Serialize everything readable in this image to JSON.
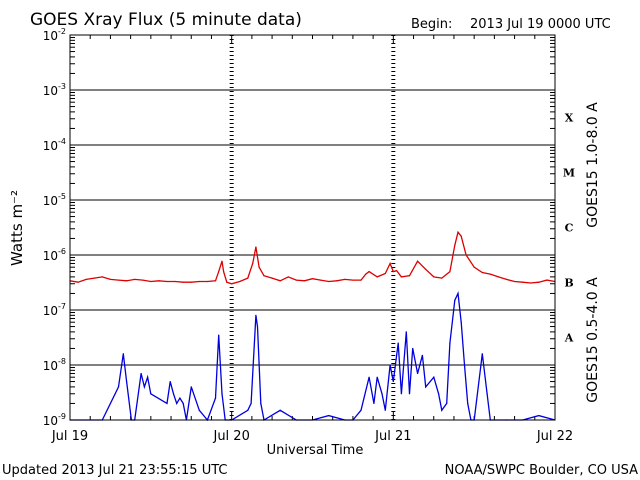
{
  "chart_data": {
    "type": "line",
    "title": "GOES Xray Flux (5 minute data)",
    "begin_label": "Begin:",
    "begin_value": "2013 Jul 19 0000 UTC",
    "xlabel": "Universal Time",
    "ylabel": "Watts m⁻²",
    "y_scale": "log",
    "ylim": [
      1e-09,
      0.01
    ],
    "xlim": [
      0,
      3
    ],
    "x_ticks": [
      {
        "label": "Jul 19",
        "x": 0
      },
      {
        "label": "Jul 20",
        "x": 1
      },
      {
        "label": "Jul 21",
        "x": 2
      },
      {
        "label": "Jul 22",
        "x": 3
      }
    ],
    "y_ticks": [
      {
        "mantissa": "10",
        "exp": "-2",
        "value": 0.01
      },
      {
        "mantissa": "10",
        "exp": "-3",
        "value": 0.001
      },
      {
        "mantissa": "10",
        "exp": "-4",
        "value": 0.0001
      },
      {
        "mantissa": "10",
        "exp": "-5",
        "value": 1e-05
      },
      {
        "mantissa": "10",
        "exp": "-6",
        "value": 1e-06
      },
      {
        "mantissa": "10",
        "exp": "-7",
        "value": 1e-07
      },
      {
        "mantissa": "10",
        "exp": "-8",
        "value": 1e-08
      },
      {
        "mantissa": "10",
        "exp": "-9",
        "value": 1e-09
      }
    ],
    "flare_classes": [
      {
        "label": "X",
        "value": 0.000316
      },
      {
        "label": "M",
        "value": 3.16e-05
      },
      {
        "label": "C",
        "value": 3.16e-06
      },
      {
        "label": "B",
        "value": 3.16e-07
      },
      {
        "label": "A",
        "value": 3.16e-08
      }
    ],
    "grid": true,
    "series": [
      {
        "name": "GOES15 1.0-8.0 A",
        "color": "#dd0000",
        "x": [
          0,
          0.05,
          0.1,
          0.15,
          0.2,
          0.25,
          0.3,
          0.35,
          0.4,
          0.45,
          0.5,
          0.55,
          0.6,
          0.65,
          0.7,
          0.75,
          0.8,
          0.85,
          0.9,
          0.92,
          0.94,
          0.95,
          0.97,
          1.0,
          1.05,
          1.1,
          1.13,
          1.15,
          1.17,
          1.2,
          1.25,
          1.3,
          1.35,
          1.4,
          1.45,
          1.5,
          1.55,
          1.6,
          1.65,
          1.7,
          1.75,
          1.8,
          1.83,
          1.85,
          1.9,
          1.95,
          1.98,
          2.0,
          2.02,
          2.05,
          2.1,
          2.15,
          2.2,
          2.25,
          2.3,
          2.35,
          2.38,
          2.4,
          2.42,
          2.45,
          2.5,
          2.55,
          2.6,
          2.65,
          2.7,
          2.75,
          2.8,
          2.85,
          2.9,
          2.95,
          3.0
        ],
        "y": [
          3.4e-07,
          3.2e-07,
          3.6e-07,
          3.8e-07,
          4e-07,
          3.6e-07,
          3.5e-07,
          3.4e-07,
          3.6e-07,
          3.5e-07,
          3.3e-07,
          3.4e-07,
          3.3e-07,
          3.3e-07,
          3.2e-07,
          3.2e-07,
          3.3e-07,
          3.3e-07,
          3.4e-07,
          5e-07,
          7.7e-07,
          5e-07,
          3.2e-07,
          3e-07,
          3.3e-07,
          3.8e-07,
          7e-07,
          1.4e-06,
          6e-07,
          4.2e-07,
          3.8e-07,
          3.4e-07,
          4e-07,
          3.5e-07,
          3.4e-07,
          3.7e-07,
          3.5e-07,
          3.3e-07,
          3.4e-07,
          3.6e-07,
          3.5e-07,
          3.5e-07,
          4.5e-07,
          5e-07,
          4e-07,
          4.6e-07,
          7e-07,
          5e-07,
          5.2e-07,
          4e-07,
          4.2e-07,
          7.7e-07,
          5.5e-07,
          4e-07,
          3.8e-07,
          5e-07,
          1.5e-06,
          2.6e-06,
          2.2e-06,
          1e-06,
          6e-07,
          4.8e-07,
          4.5e-07,
          4e-07,
          3.6e-07,
          3.3e-07,
          3.2e-07,
          3.1e-07,
          3.2e-07,
          3.5e-07,
          3.3e-07
        ]
      },
      {
        "name": "GOES15 0.5-4.0 A",
        "color": "#0000dd",
        "x": [
          0,
          0.2,
          0.3,
          0.33,
          0.35,
          0.38,
          0.4,
          0.44,
          0.46,
          0.48,
          0.5,
          0.6,
          0.62,
          0.64,
          0.66,
          0.68,
          0.7,
          0.72,
          0.75,
          0.8,
          0.85,
          0.9,
          0.92,
          0.94,
          0.96,
          1.0,
          1.1,
          1.12,
          1.15,
          1.16,
          1.18,
          1.2,
          1.3,
          1.4,
          1.5,
          1.6,
          1.7,
          1.75,
          1.8,
          1.85,
          1.88,
          1.9,
          1.93,
          1.95,
          1.98,
          2.0,
          2.03,
          2.05,
          2.08,
          2.1,
          2.12,
          2.15,
          2.18,
          2.2,
          2.25,
          2.28,
          2.3,
          2.33,
          2.35,
          2.38,
          2.4,
          2.42,
          2.44,
          2.46,
          2.48,
          2.5,
          2.55,
          2.58,
          2.6,
          2.7,
          2.8,
          2.9,
          3.0
        ],
        "y": [
          1e-09,
          1e-09,
          4e-09,
          1.6e-08,
          5e-09,
          1e-09,
          1e-09,
          7e-09,
          4e-09,
          6e-09,
          3e-09,
          2e-09,
          5e-09,
          3e-09,
          2e-09,
          2.5e-09,
          2e-09,
          1e-09,
          4e-09,
          1.5e-09,
          1e-09,
          2.5e-09,
          3.5e-08,
          3e-09,
          1e-09,
          1e-09,
          1.5e-09,
          2e-09,
          8e-08,
          5e-08,
          2e-09,
          1e-09,
          1.5e-09,
          1e-09,
          1e-09,
          1.2e-09,
          1e-09,
          1e-09,
          1.5e-09,
          6e-09,
          2e-09,
          6e-09,
          3e-09,
          1.5e-09,
          1e-08,
          5e-09,
          2.5e-08,
          3e-09,
          4e-08,
          3e-09,
          2e-08,
          7e-09,
          1.5e-08,
          4e-09,
          6e-09,
          3e-09,
          1.5e-09,
          2e-09,
          2.5e-08,
          1.5e-07,
          2e-07,
          6e-08,
          1e-08,
          2e-09,
          1e-09,
          1e-09,
          1.6e-08,
          3e-09,
          1e-09,
          1e-09,
          1e-09,
          1.2e-09,
          1e-09
        ]
      }
    ]
  },
  "footer": {
    "updated": "Updated 2013 Jul 21 23:55:15 UTC",
    "credit": "NOAA/SWPC Boulder, CO USA"
  }
}
